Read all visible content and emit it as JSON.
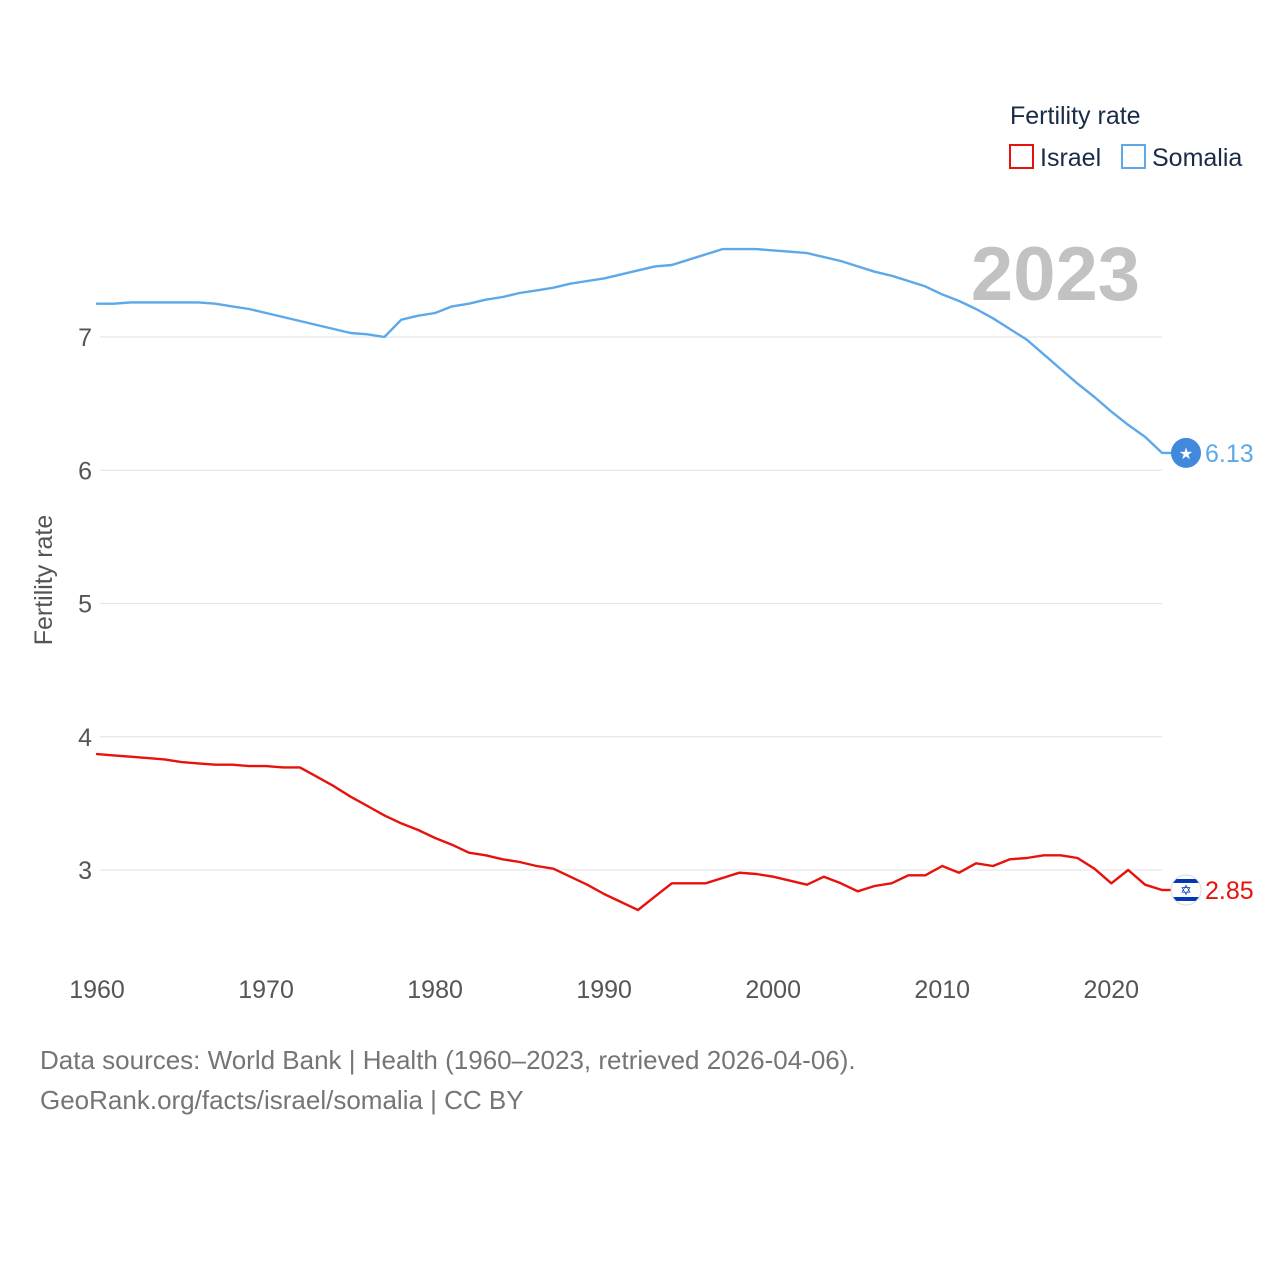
{
  "chart_data": {
    "type": "line",
    "title": "",
    "xlabel": "",
    "ylabel": "Fertility rate",
    "legend_title": "Fertility rate",
    "legend_position": "top-right",
    "year_label": "2023",
    "xlim": [
      1960,
      2023
    ],
    "ylim": [
      2.35,
      8.1
    ],
    "x_ticks": [
      1960,
      1970,
      1980,
      1990,
      2000,
      2010,
      2020
    ],
    "y_ticks": [
      3,
      4,
      5,
      6,
      7
    ],
    "grid": true,
    "x": [
      1960,
      1961,
      1962,
      1963,
      1964,
      1965,
      1966,
      1967,
      1968,
      1969,
      1970,
      1971,
      1972,
      1973,
      1974,
      1975,
      1976,
      1977,
      1978,
      1979,
      1980,
      1981,
      1982,
      1983,
      1984,
      1985,
      1986,
      1987,
      1988,
      1989,
      1990,
      1991,
      1992,
      1993,
      1994,
      1995,
      1996,
      1997,
      1998,
      1999,
      2000,
      2001,
      2002,
      2003,
      2004,
      2005,
      2006,
      2007,
      2008,
      2009,
      2010,
      2011,
      2012,
      2013,
      2014,
      2015,
      2016,
      2017,
      2018,
      2019,
      2020,
      2021,
      2022,
      2023
    ],
    "series": [
      {
        "name": "Israel",
        "color": "#e8120c",
        "end_label": "2.85",
        "flag_icon": "israel-flag-icon",
        "values": [
          3.87,
          3.86,
          3.85,
          3.84,
          3.83,
          3.81,
          3.8,
          3.79,
          3.79,
          3.78,
          3.78,
          3.77,
          3.77,
          3.7,
          3.63,
          3.55,
          3.48,
          3.41,
          3.35,
          3.3,
          3.24,
          3.19,
          3.13,
          3.11,
          3.08,
          3.06,
          3.03,
          3.01,
          2.95,
          2.89,
          2.82,
          2.76,
          2.7,
          2.8,
          2.9,
          2.9,
          2.9,
          2.94,
          2.98,
          2.97,
          2.95,
          2.92,
          2.89,
          2.95,
          2.9,
          2.84,
          2.88,
          2.9,
          2.96,
          2.96,
          3.03,
          2.98,
          3.05,
          3.03,
          3.08,
          3.09,
          3.11,
          3.11,
          3.09,
          3.01,
          2.9,
          3.0,
          2.89,
          2.85
        ]
      },
      {
        "name": "Somalia",
        "color": "#5da8e8",
        "end_label": "6.13",
        "flag_icon": "somalia-flag-icon",
        "values": [
          7.25,
          7.25,
          7.26,
          7.26,
          7.26,
          7.26,
          7.26,
          7.25,
          7.23,
          7.21,
          7.18,
          7.15,
          7.12,
          7.09,
          7.06,
          7.03,
          7.02,
          7.0,
          7.13,
          7.16,
          7.18,
          7.23,
          7.25,
          7.28,
          7.3,
          7.33,
          7.35,
          7.37,
          7.4,
          7.42,
          7.44,
          7.47,
          7.5,
          7.53,
          7.54,
          7.58,
          7.62,
          7.66,
          7.66,
          7.66,
          7.65,
          7.64,
          7.63,
          7.6,
          7.57,
          7.53,
          7.49,
          7.46,
          7.42,
          7.38,
          7.32,
          7.27,
          7.21,
          7.14,
          7.06,
          6.98,
          6.87,
          6.76,
          6.65,
          6.55,
          6.44,
          6.34,
          6.25,
          6.13
        ]
      }
    ]
  },
  "footer": {
    "line1": "Data sources: World Bank | Health (1960–2023, retrieved 2026-04-06).",
    "line2": "GeoRank.org/facts/israel/somalia | CC BY"
  }
}
